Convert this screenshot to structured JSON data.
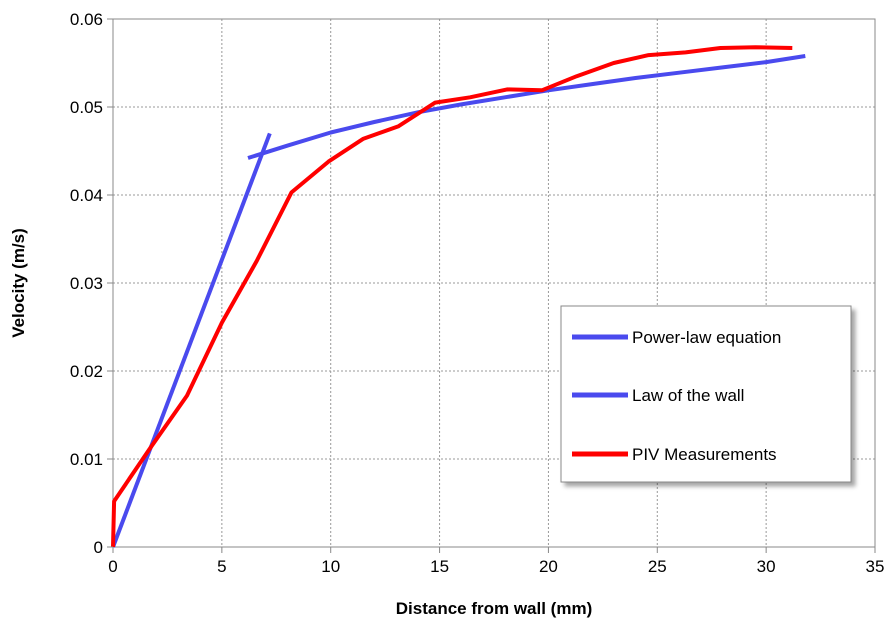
{
  "chart_data": {
    "type": "line",
    "title": "",
    "xlabel": "Distance from wall (mm)",
    "ylabel": "Velocity (m/s)",
    "xlim": [
      0,
      35
    ],
    "ylim": [
      0,
      0.06
    ],
    "x_ticks": [
      "0",
      "5",
      "10",
      "15",
      "20",
      "25",
      "30",
      "35"
    ],
    "y_ticks": [
      "0",
      "0.01",
      "0.02",
      "0.03",
      "0.04",
      "0.05",
      "0.06"
    ],
    "x_tick_values": [
      0,
      5,
      10,
      15,
      20,
      25,
      30,
      35
    ],
    "y_tick_values": [
      0,
      0.01,
      0.02,
      0.03,
      0.04,
      0.05,
      0.06
    ],
    "grid": true,
    "legend_position": "lower-right",
    "series": [
      {
        "name": "Power-law equation",
        "color": "#4a4aee",
        "x": [
          6.2,
          8,
          10,
          12,
          14,
          16,
          18,
          20,
          22,
          24,
          26,
          28,
          30,
          31.8
        ],
        "y": [
          0.0442,
          0.0456,
          0.0471,
          0.0483,
          0.0494,
          0.0503,
          0.0511,
          0.0519,
          0.0526,
          0.0533,
          0.0539,
          0.0545,
          0.0551,
          0.0558
        ]
      },
      {
        "name": "Law of the wall",
        "color": "#4a4aee",
        "x": [
          0,
          7.2
        ],
        "y": [
          0,
          0.047
        ]
      },
      {
        "name": "PIV Measurements",
        "color": "#ff0000",
        "x": [
          0,
          0.05,
          1.7,
          3.4,
          5,
          6.6,
          8.2,
          9.9,
          11.5,
          13.1,
          14.8,
          16.4,
          18.1,
          19.7,
          21.3,
          23,
          24.6,
          26.3,
          27.9,
          29.5,
          31.2
        ],
        "y": [
          0,
          0.0052,
          0.0112,
          0.0172,
          0.0255,
          0.0325,
          0.0403,
          0.0438,
          0.0464,
          0.0478,
          0.0505,
          0.0511,
          0.052,
          0.0519,
          0.0535,
          0.055,
          0.0559,
          0.0562,
          0.0567,
          0.0568,
          0.0567
        ]
      }
    ]
  }
}
